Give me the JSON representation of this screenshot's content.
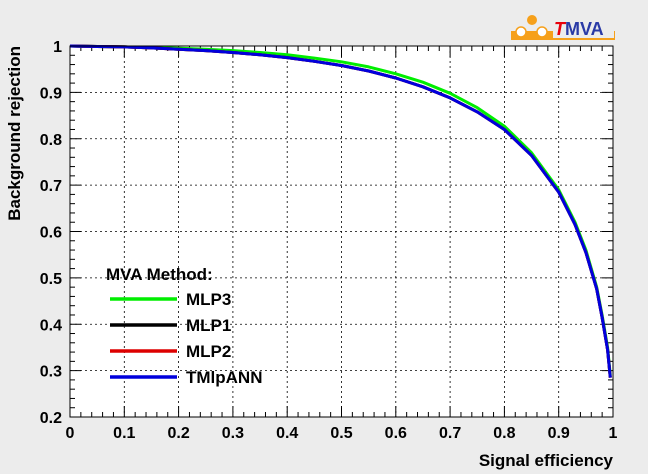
{
  "logo": {
    "text_T": "T",
    "text_rest": "MVA",
    "color_T": "#e8000b",
    "color_rest": "#2a3aa6",
    "color_bar": "#f6a01a"
  },
  "chart_data": {
    "type": "line",
    "title": "",
    "xlabel": "Signal efficiency",
    "ylabel": "Background rejection",
    "xlim": [
      0,
      1
    ],
    "ylim": [
      0.2,
      1
    ],
    "xticks": [
      0,
      0.1,
      0.2,
      0.3,
      0.4,
      0.5,
      0.6,
      0.7,
      0.8,
      0.9,
      1
    ],
    "xtick_labels": [
      "0",
      "0.1",
      "0.2",
      "0.3",
      "0.4",
      "0.5",
      "0.6",
      "0.7",
      "0.8",
      "0.9",
      "1"
    ],
    "yticks": [
      0.2,
      0.3,
      0.4,
      0.5,
      0.6,
      0.7,
      0.8,
      0.9,
      1
    ],
    "ytick_labels": [
      "0.2",
      "0.3",
      "0.4",
      "0.5",
      "0.6",
      "0.7",
      "0.8",
      "0.9",
      "1"
    ],
    "grid": true,
    "legend": {
      "title": "MVA Method:",
      "placement": "bottom-left"
    },
    "series": [
      {
        "name": "MLP3",
        "color": "#00ee00",
        "x": [
          0,
          0.05,
          0.1,
          0.15,
          0.2,
          0.25,
          0.3,
          0.35,
          0.4,
          0.45,
          0.5,
          0.55,
          0.6,
          0.65,
          0.7,
          0.75,
          0.8,
          0.85,
          0.9,
          0.93,
          0.95,
          0.97,
          0.98,
          0.99,
          0.995
        ],
        "y": [
          1,
          0.999,
          0.998,
          0.997,
          0.995,
          0.993,
          0.99,
          0.986,
          0.981,
          0.974,
          0.966,
          0.955,
          0.94,
          0.922,
          0.898,
          0.867,
          0.827,
          0.77,
          0.69,
          0.62,
          0.56,
          0.48,
          0.42,
          0.35,
          0.29
        ]
      },
      {
        "name": "MLP1",
        "color": "#000000",
        "x": [
          0,
          0.05,
          0.1,
          0.15,
          0.2,
          0.25,
          0.3,
          0.35,
          0.4,
          0.45,
          0.5,
          0.55,
          0.6,
          0.65,
          0.7,
          0.75,
          0.8,
          0.85,
          0.9,
          0.93,
          0.95,
          0.97,
          0.98,
          0.99,
          0.995
        ],
        "y": [
          1,
          0.999,
          0.998,
          0.996,
          0.993,
          0.99,
          0.986,
          0.981,
          0.975,
          0.967,
          0.958,
          0.946,
          0.931,
          0.912,
          0.888,
          0.858,
          0.82,
          0.764,
          0.685,
          0.615,
          0.555,
          0.476,
          0.415,
          0.345,
          0.285
        ]
      },
      {
        "name": "MLP2",
        "color": "#dd0000",
        "x": [
          0,
          0.05,
          0.1,
          0.15,
          0.2,
          0.25,
          0.3,
          0.35,
          0.4,
          0.45,
          0.5,
          0.55,
          0.6,
          0.65,
          0.7,
          0.75,
          0.8,
          0.85,
          0.9,
          0.93,
          0.95,
          0.97,
          0.98,
          0.99,
          0.995
        ],
        "y": [
          1,
          0.999,
          0.998,
          0.996,
          0.993,
          0.99,
          0.986,
          0.981,
          0.975,
          0.967,
          0.958,
          0.946,
          0.931,
          0.912,
          0.888,
          0.858,
          0.82,
          0.764,
          0.685,
          0.615,
          0.555,
          0.476,
          0.415,
          0.345,
          0.285
        ]
      },
      {
        "name": "TMlpANN",
        "color": "#0000dd",
        "x": [
          0,
          0.05,
          0.1,
          0.15,
          0.2,
          0.25,
          0.3,
          0.35,
          0.4,
          0.45,
          0.5,
          0.55,
          0.6,
          0.65,
          0.7,
          0.75,
          0.8,
          0.85,
          0.9,
          0.93,
          0.95,
          0.97,
          0.98,
          0.99,
          0.995
        ],
        "y": [
          1,
          0.999,
          0.998,
          0.996,
          0.993,
          0.99,
          0.986,
          0.981,
          0.975,
          0.967,
          0.958,
          0.946,
          0.931,
          0.912,
          0.888,
          0.858,
          0.82,
          0.764,
          0.685,
          0.615,
          0.555,
          0.476,
          0.415,
          0.345,
          0.285
        ]
      }
    ]
  }
}
